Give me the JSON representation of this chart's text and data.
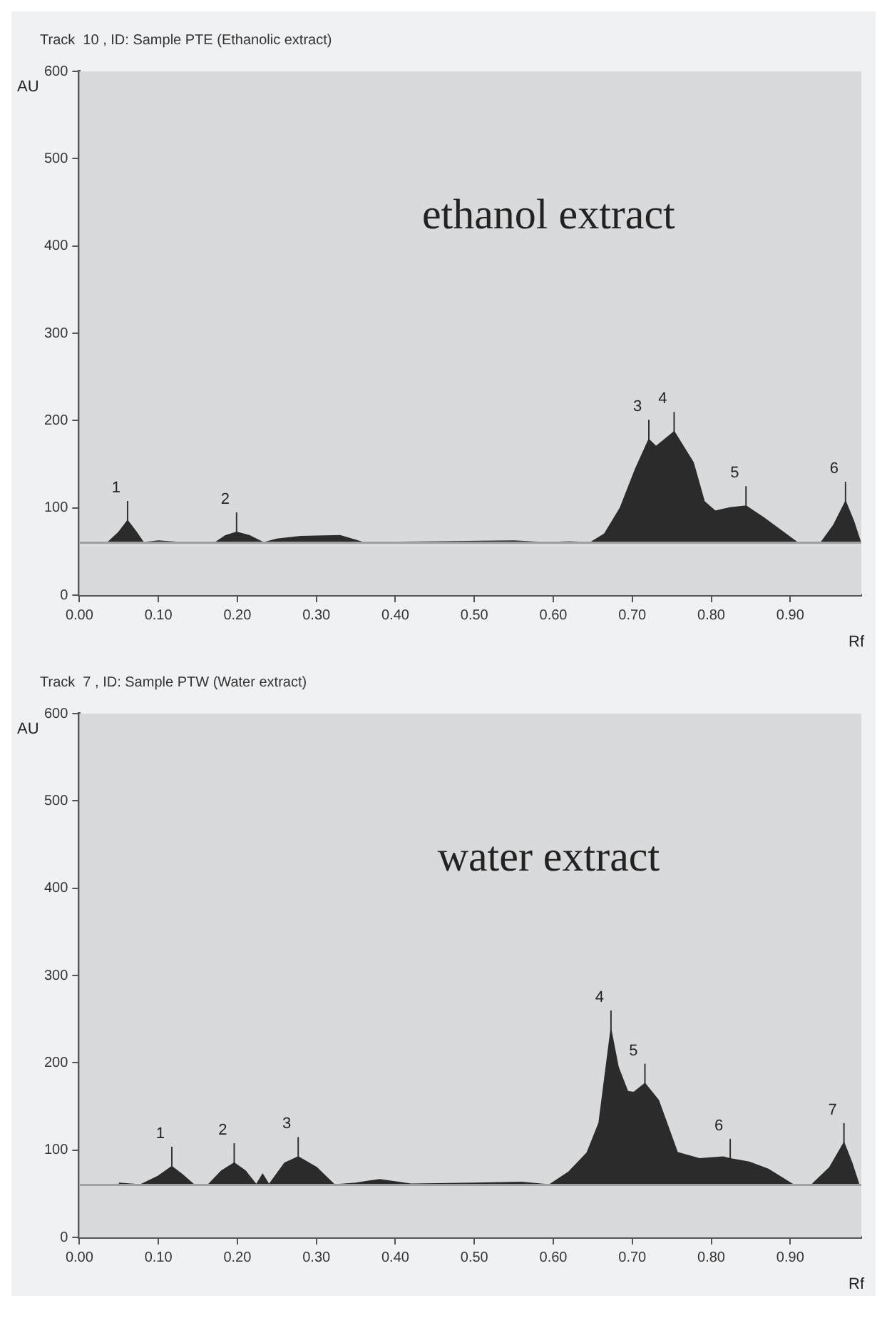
{
  "chart_data": [
    {
      "type": "area",
      "title": "Track  10 , ID: Sample PTE (Ethanolic extract)",
      "xlabel": "Rf",
      "ylabel": "AU",
      "xlim": [
        0,
        0.99
      ],
      "xticks": [
        {
          "value": 0,
          "label": "0.00"
        },
        {
          "value": 0.1,
          "label": "0.10"
        },
        {
          "value": 0.2,
          "label": "0.20"
        },
        {
          "value": 0.3,
          "label": "0.30"
        },
        {
          "value": 0.4,
          "label": "0.40"
        },
        {
          "value": 0.5,
          "label": "0.50"
        },
        {
          "value": 0.6,
          "label": "0.60"
        },
        {
          "value": 0.7,
          "label": "0.70"
        },
        {
          "value": 0.8,
          "label": "0.80"
        },
        {
          "value": 0.9,
          "label": "0.90"
        }
      ],
      "ylim": [
        0,
        600
      ],
      "yticks": [
        0,
        100,
        200,
        300,
        400,
        500,
        600
      ],
      "series": [
        {
          "color": "#2b2b2b",
          "x": [
            0.03,
            0.036,
            0.05,
            0.061,
            0.072,
            0.081,
            0.1,
            0.13,
            0.172,
            0.185,
            0.199,
            0.215,
            0.233,
            0.25,
            0.28,
            0.33,
            0.36,
            0.45,
            0.55,
            0.59,
            0.62,
            0.647,
            0.665,
            0.685,
            0.704,
            0.721,
            0.73,
            0.753,
            0.777,
            0.791,
            0.805,
            0.824,
            0.844,
            0.867,
            0.909,
            0.939,
            0.955,
            0.97,
            0.98,
            0.989
          ],
          "values": [
            60,
            60,
            72,
            85,
            72,
            60,
            62,
            60,
            60,
            68,
            72,
            68,
            60,
            64,
            67,
            68,
            60,
            61,
            62,
            60,
            61,
            60,
            70,
            100,
            144,
            178,
            170,
            187,
            152,
            107,
            96,
            100,
            102,
            88,
            60,
            60,
            80,
            107,
            85,
            60
          ]
        }
      ],
      "ref_lines": [
        {
          "axis": "y",
          "value": 60,
          "color": "#a0a0a0"
        }
      ],
      "annotations": [
        "ethanol extract",
        {
          "text": "1",
          "x": 0.061,
          "y": 85
        },
        {
          "text": "2",
          "x": 0.199,
          "y": 72
        },
        {
          "text": "3",
          "x": 0.721,
          "y": 178
        },
        {
          "text": "4",
          "x": 0.753,
          "y": 187
        },
        {
          "text": "5",
          "x": 0.844,
          "y": 102
        },
        {
          "text": "6",
          "x": 0.97,
          "y": 107
        }
      ]
    },
    {
      "type": "area",
      "title": "Track  7 , ID: Sample PTW (Water extract)",
      "xlabel": "Rf",
      "ylabel": "AU",
      "xlim": [
        0,
        0.99
      ],
      "xticks": [
        {
          "value": 0,
          "label": "0.00"
        },
        {
          "value": 0.1,
          "label": "0.10"
        },
        {
          "value": 0.2,
          "label": "0.20"
        },
        {
          "value": 0.3,
          "label": "0.30"
        },
        {
          "value": 0.4,
          "label": "0.40"
        },
        {
          "value": 0.5,
          "label": "0.50"
        },
        {
          "value": 0.6,
          "label": "0.60"
        },
        {
          "value": 0.7,
          "label": "0.70"
        },
        {
          "value": 0.8,
          "label": "0.80"
        },
        {
          "value": 0.9,
          "label": "0.90"
        }
      ],
      "ylim": [
        0,
        600
      ],
      "yticks": [
        0,
        100,
        200,
        300,
        400,
        500,
        600
      ],
      "series": [
        {
          "color": "#2b2b2b",
          "x": [
            0.05,
            0.077,
            0.1,
            0.117,
            0.13,
            0.145,
            0.163,
            0.18,
            0.196,
            0.21,
            0.224,
            0.232,
            0.24,
            0.26,
            0.277,
            0.3,
            0.323,
            0.35,
            0.38,
            0.42,
            0.5,
            0.56,
            0.595,
            0.62,
            0.643,
            0.658,
            0.673,
            0.682,
            0.694,
            0.702,
            0.716,
            0.733,
            0.757,
            0.785,
            0.815,
            0.824,
            0.848,
            0.872,
            0.904,
            0.927,
            0.95,
            0.968,
            0.978,
            0.987
          ],
          "values": [
            62,
            60,
            70,
            81,
            72,
            60,
            60,
            76,
            85,
            76,
            60,
            72,
            60,
            85,
            92,
            80,
            60,
            62,
            66,
            61,
            62,
            63,
            60,
            75,
            97,
            131,
            237,
            195,
            167,
            166,
            176,
            157,
            97,
            90,
            92,
            90,
            86,
            78,
            60,
            60,
            80,
            108,
            85,
            60
          ]
        }
      ],
      "ref_lines": [
        {
          "axis": "y",
          "value": 60,
          "color": "#a0a0a0"
        }
      ],
      "annotations": [
        "water extract",
        {
          "text": "1",
          "x": 0.117,
          "y": 81
        },
        {
          "text": "2",
          "x": 0.196,
          "y": 85
        },
        {
          "text": "3",
          "x": 0.277,
          "y": 92
        },
        {
          "text": "4",
          "x": 0.673,
          "y": 237
        },
        {
          "text": "5",
          "x": 0.716,
          "y": 176
        },
        {
          "text": "6",
          "x": 0.824,
          "y": 90
        },
        {
          "text": "7",
          "x": 0.968,
          "y": 108
        }
      ]
    }
  ]
}
